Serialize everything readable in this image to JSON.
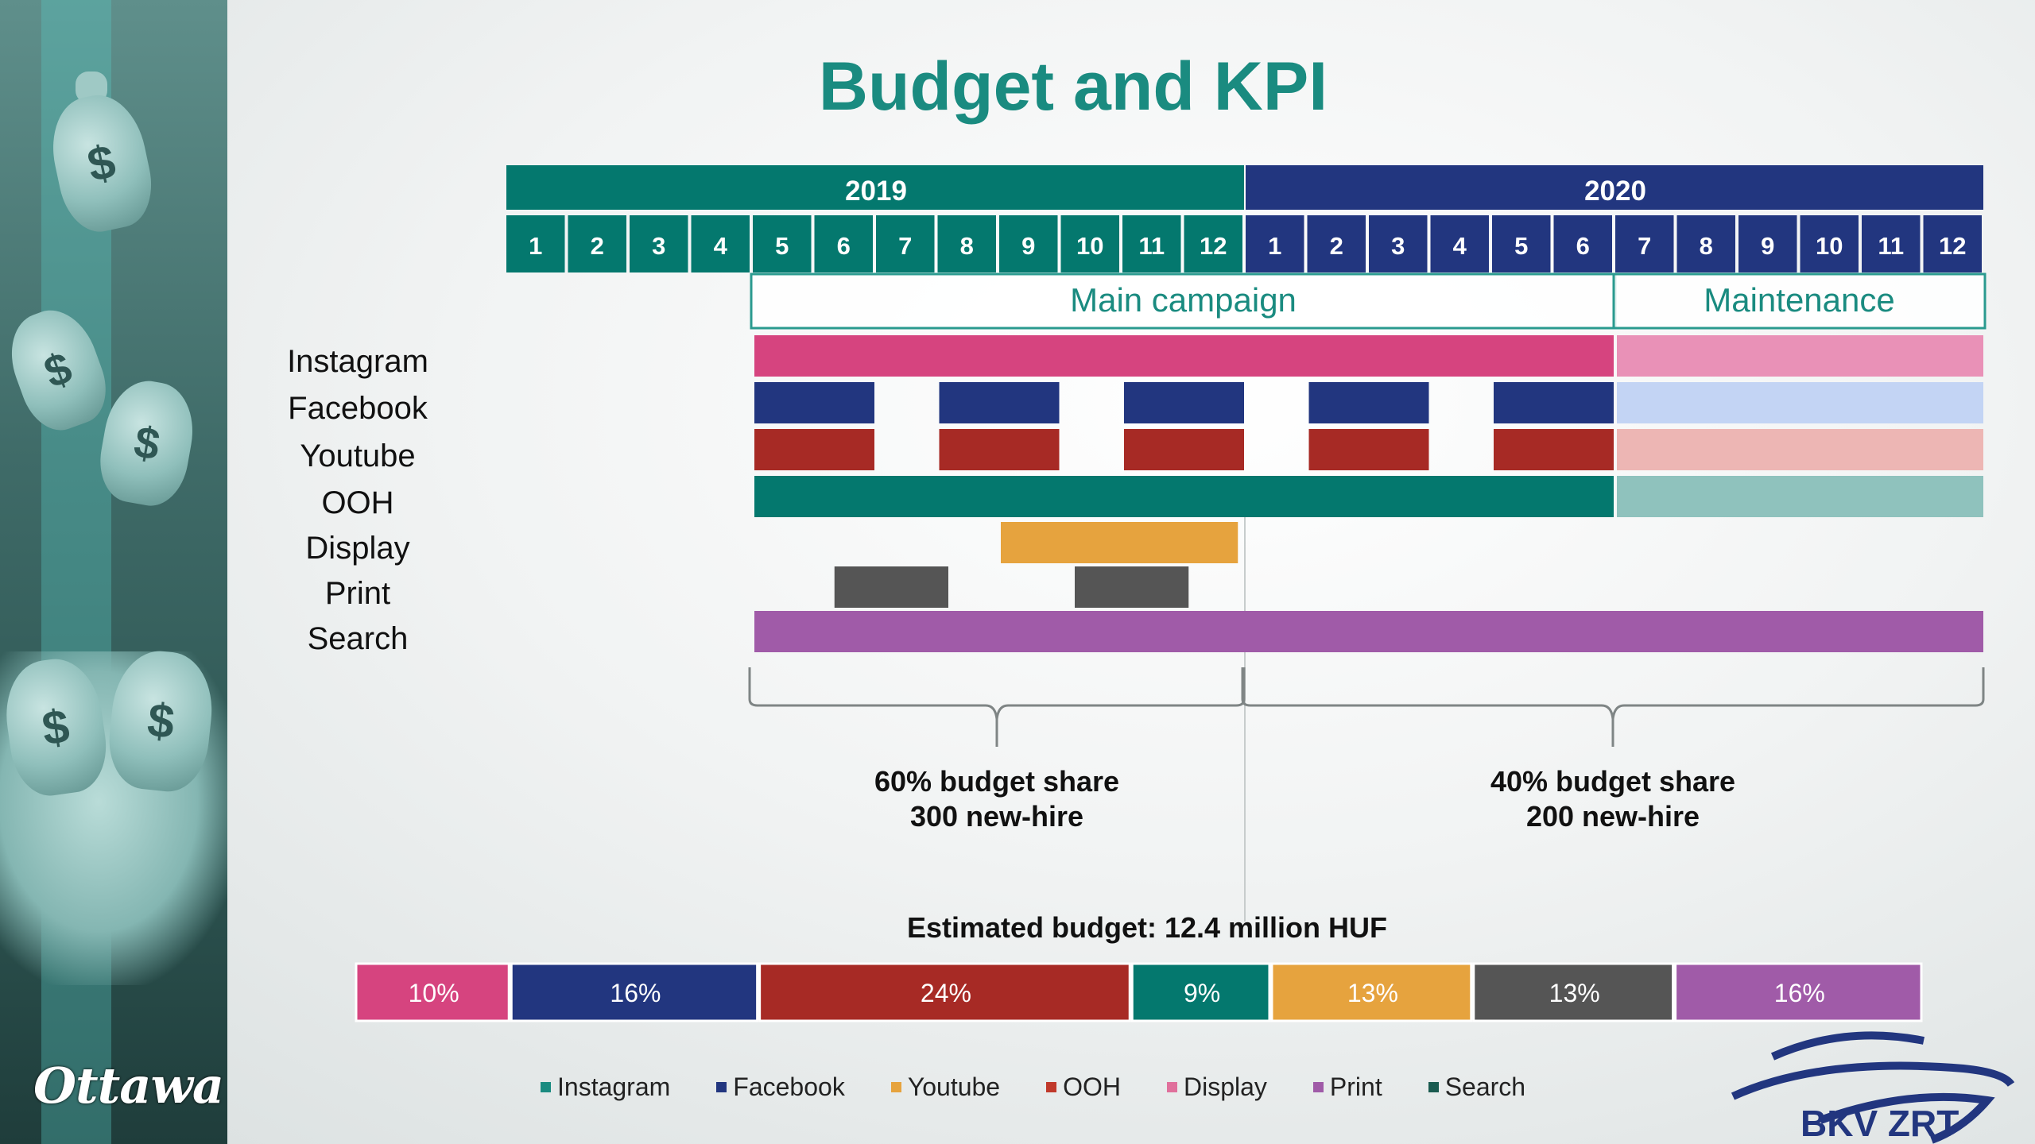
{
  "title": "Budget and KPI",
  "years": [
    "2019",
    "2020"
  ],
  "months": [
    "1",
    "2",
    "3",
    "4",
    "5",
    "6",
    "7",
    "8",
    "9",
    "10",
    "11",
    "12",
    "1",
    "2",
    "3",
    "4",
    "5",
    "6",
    "7",
    "8",
    "9",
    "10",
    "11",
    "12"
  ],
  "phases": [
    {
      "label": "Main campaign",
      "start": 5,
      "end": 18
    },
    {
      "label": "Maintenance",
      "start": 19,
      "end": 24
    }
  ],
  "channels": [
    {
      "name": "Instagram",
      "color": "#d6447f",
      "light": "#e991b7",
      "bars": [
        {
          "start": 5,
          "end": 18,
          "tone": "main"
        },
        {
          "start": 19,
          "end": 24,
          "tone": "light"
        }
      ]
    },
    {
      "name": "Facebook",
      "color": "#22367f",
      "light": "#c3d4f4",
      "bars": [
        {
          "start": 5,
          "end": 6,
          "tone": "main"
        },
        {
          "start": 8,
          "end": 9,
          "tone": "main"
        },
        {
          "start": 11,
          "end": 12,
          "tone": "main"
        },
        {
          "start": 14,
          "end": 15,
          "tone": "main"
        },
        {
          "start": 17,
          "end": 18,
          "tone": "main"
        },
        {
          "start": 19,
          "end": 24,
          "tone": "light"
        }
      ]
    },
    {
      "name": "Youtube",
      "color": "#a72a25",
      "light": "#edb6b4",
      "bars": [
        {
          "start": 5,
          "end": 6,
          "tone": "main"
        },
        {
          "start": 8,
          "end": 9,
          "tone": "main"
        },
        {
          "start": 11,
          "end": 12,
          "tone": "main"
        },
        {
          "start": 14,
          "end": 15,
          "tone": "main"
        },
        {
          "start": 17,
          "end": 18,
          "tone": "main"
        },
        {
          "start": 19,
          "end": 24,
          "tone": "light"
        }
      ]
    },
    {
      "name": "OOH",
      "color": "#04786e",
      "light": "#8fc2bd",
      "bars": [
        {
          "start": 5,
          "end": 18,
          "tone": "main"
        },
        {
          "start": 19,
          "end": 24,
          "tone": "light"
        }
      ]
    },
    {
      "name": "Display",
      "color": "#e6a33e",
      "light": "#e6a33e",
      "bars": [
        {
          "start": 9,
          "end": 11.9,
          "tone": "main"
        }
      ]
    },
    {
      "name": "Print",
      "color": "#555555",
      "light": "#555555",
      "bars": [
        {
          "start": 6.3,
          "end": 7.2,
          "tone": "main"
        },
        {
          "start": 10.2,
          "end": 11.1,
          "tone": "main"
        }
      ]
    },
    {
      "name": "Search",
      "color": "#a05ba8",
      "light": "#a05ba8",
      "bars": [
        {
          "start": 5,
          "end": 24,
          "tone": "main"
        }
      ]
    }
  ],
  "summaries": [
    {
      "line1": "60% budget share",
      "line2": "300 new-hire",
      "start": 5,
      "end": 12
    },
    {
      "line1": "40% budget share",
      "line2": "200 new-hire",
      "start": 13,
      "end": 24
    }
  ],
  "budget": {
    "title": "Estimated budget: 12.4 million HUF",
    "segments": [
      {
        "label": "10%",
        "value": 10,
        "color": "#d6447f"
      },
      {
        "label": "16%",
        "value": 16,
        "color": "#22367f"
      },
      {
        "label": "24%",
        "value": 24,
        "color": "#a72a25"
      },
      {
        "label": "9%",
        "value": 9,
        "color": "#04786e"
      },
      {
        "label": "13%",
        "value": 13,
        "color": "#e6a33e"
      },
      {
        "label": "13%",
        "value": 13,
        "color": "#555555"
      },
      {
        "label": "16%",
        "value": 16,
        "color": "#a05ba8"
      }
    ]
  },
  "legend": [
    {
      "label": "Instagram",
      "color": "#1a8b80"
    },
    {
      "label": "Facebook",
      "color": "#22367f"
    },
    {
      "label": "Youtube",
      "color": "#e6a33e"
    },
    {
      "label": "OOH",
      "color": "#c0392b"
    },
    {
      "label": "Display",
      "color": "#e0709c"
    },
    {
      "label": "Print",
      "color": "#a05ba8"
    },
    {
      "label": "Search",
      "color": "#1a5b50"
    }
  ],
  "colors": {
    "year_2019": "#04786e",
    "year_2020": "#22367f",
    "title": "#1a8b80",
    "phase_border": "#2a9a8f"
  },
  "logo_left": "Ottawa",
  "logo_right": "BKV ZRT"
}
